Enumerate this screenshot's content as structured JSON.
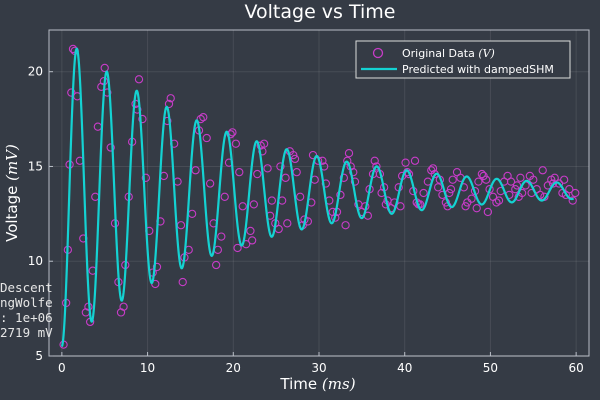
{
  "chart_data": {
    "type": "scatter",
    "title": "Voltage vs Time",
    "xlabel": "Time",
    "xlabel_unit": "(ms)",
    "ylabel": "Voltage",
    "ylabel_unit": "(mV)",
    "xlim": [
      -1.5,
      61.5
    ],
    "ylim": [
      5,
      22.2
    ],
    "xticks": [
      0,
      10,
      20,
      30,
      40,
      50,
      60
    ],
    "yticks": [
      5,
      10,
      15,
      20
    ],
    "grid": true,
    "legend_position": "top-right",
    "legend": [
      {
        "label": "Original Data",
        "unit": "(V)"
      },
      {
        "label": "Predicted with dampedSHM"
      }
    ],
    "annotation_lines": [
      "Descent",
      "ngWolfe",
      ": 1e+06",
      "2719 mV"
    ],
    "colors": {
      "background": "#353b45",
      "data_points": "#c83cc8",
      "model_line": "#14d2d2",
      "text": "#ffffff"
    },
    "model": {
      "name": "dampedSHM",
      "baseline_mV": 13.7,
      "amplitude_mV": -8.2,
      "decay_ms": 20,
      "period_ms": 3.5,
      "sample_step_ms": 0.35
    },
    "series": [
      {
        "name": "Original Data",
        "kind": "scatter",
        "points": [
          [
            0.2,
            5.6
          ],
          [
            0.5,
            7.8
          ],
          [
            0.7,
            10.6
          ],
          [
            0.9,
            15.1
          ],
          [
            1.1,
            18.9
          ],
          [
            1.5,
            21.1
          ],
          [
            1.8,
            18.7
          ],
          [
            2.1,
            15.3
          ],
          [
            2.5,
            11.2
          ],
          [
            2.8,
            7.3
          ],
          [
            3.3,
            6.8
          ],
          [
            3.6,
            9.5
          ],
          [
            3.9,
            13.4
          ],
          [
            4.2,
            17.1
          ],
          [
            4.6,
            19.2
          ],
          [
            5.0,
            20.2
          ],
          [
            5.3,
            18.9
          ],
          [
            5.7,
            16.0
          ],
          [
            6.2,
            12.0
          ],
          [
            6.6,
            8.9
          ],
          [
            6.9,
            7.3
          ],
          [
            7.4,
            9.8
          ],
          [
            7.8,
            13.4
          ],
          [
            8.2,
            16.3
          ],
          [
            8.6,
            18.3
          ],
          [
            9.0,
            19.6
          ],
          [
            9.4,
            17.5
          ],
          [
            9.8,
            14.4
          ],
          [
            10.2,
            11.6
          ],
          [
            10.6,
            9.4
          ],
          [
            11.1,
            9.7
          ],
          [
            11.5,
            12.1
          ],
          [
            11.9,
            14.5
          ],
          [
            12.3,
            17.4
          ],
          [
            12.7,
            18.6
          ],
          [
            13.1,
            16.2
          ],
          [
            13.5,
            14.2
          ],
          [
            13.9,
            11.9
          ],
          [
            14.3,
            10.2
          ],
          [
            14.8,
            10.6
          ],
          [
            15.2,
            12.5
          ],
          [
            15.6,
            14.8
          ],
          [
            16.0,
            16.9
          ],
          [
            16.5,
            17.6
          ],
          [
            16.9,
            16.5
          ],
          [
            17.3,
            14.1
          ],
          [
            17.7,
            12.0
          ],
          [
            18.2,
            10.6
          ],
          [
            18.6,
            11.3
          ],
          [
            19.0,
            13.4
          ],
          [
            19.5,
            15.2
          ],
          [
            19.9,
            16.8
          ],
          [
            20.3,
            16.2
          ],
          [
            20.7,
            14.7
          ],
          [
            21.1,
            12.9
          ],
          [
            21.5,
            10.9
          ],
          [
            22.0,
            11.6
          ],
          [
            22.4,
            13.0
          ],
          [
            22.8,
            14.6
          ],
          [
            23.2,
            16.1
          ],
          [
            23.6,
            16.2
          ],
          [
            24.0,
            14.9
          ],
          [
            24.5,
            13.2
          ],
          [
            24.9,
            12.0
          ],
          [
            25.3,
            11.7
          ],
          [
            25.7,
            13.2
          ],
          [
            26.1,
            14.4
          ],
          [
            26.6,
            15.8
          ],
          [
            27.0,
            15.6
          ],
          [
            27.4,
            14.7
          ],
          [
            27.8,
            13.4
          ],
          [
            28.3,
            12.2
          ],
          [
            28.7,
            12.1
          ],
          [
            29.1,
            13.1
          ],
          [
            29.5,
            14.3
          ],
          [
            29.9,
            15.3
          ],
          [
            30.4,
            15.3
          ],
          [
            30.8,
            14.1
          ],
          [
            31.2,
            13.2
          ],
          [
            31.6,
            12.6
          ],
          [
            32.1,
            12.6
          ],
          [
            32.5,
            13.5
          ],
          [
            32.9,
            14.4
          ],
          [
            33.3,
            15.3
          ],
          [
            33.7,
            15.0
          ],
          [
            34.2,
            14.2
          ],
          [
            34.6,
            13.0
          ],
          [
            35.0,
            12.6
          ],
          [
            35.4,
            12.9
          ],
          [
            35.9,
            13.8
          ],
          [
            36.3,
            14.6
          ],
          [
            36.7,
            15.0
          ],
          [
            37.1,
            14.6
          ],
          [
            37.6,
            13.9
          ],
          [
            38.0,
            13.2
          ],
          [
            38.4,
            12.8
          ],
          [
            38.8,
            13.1
          ],
          [
            39.3,
            13.9
          ],
          [
            39.7,
            14.5
          ],
          [
            40.1,
            15.2
          ],
          [
            40.5,
            14.6
          ],
          [
            41.0,
            13.7
          ],
          [
            41.4,
            13.1
          ],
          [
            41.8,
            13.0
          ],
          [
            42.2,
            13.6
          ],
          [
            42.7,
            14.2
          ],
          [
            43.1,
            14.8
          ],
          [
            43.5,
            14.6
          ],
          [
            43.9,
            13.9
          ],
          [
            44.4,
            13.5
          ],
          [
            44.8,
            13.1
          ],
          [
            45.2,
            13.6
          ],
          [
            45.6,
            14.3
          ],
          [
            46.1,
            14.7
          ],
          [
            46.5,
            14.4
          ],
          [
            46.9,
            13.9
          ],
          [
            47.3,
            13.1
          ],
          [
            47.8,
            13.3
          ],
          [
            48.2,
            13.7
          ],
          [
            48.6,
            14.2
          ],
          [
            49.0,
            14.6
          ],
          [
            49.5,
            14.3
          ],
          [
            49.9,
            13.8
          ],
          [
            50.3,
            13.4
          ],
          [
            50.7,
            13.1
          ],
          [
            51.2,
            13.7
          ],
          [
            51.6,
            14.2
          ],
          [
            52.0,
            14.5
          ],
          [
            52.4,
            14.2
          ],
          [
            52.9,
            13.8
          ],
          [
            53.3,
            13.4
          ],
          [
            53.7,
            13.6
          ],
          [
            54.1,
            14.0
          ],
          [
            54.6,
            14.5
          ],
          [
            55.0,
            14.3
          ],
          [
            55.4,
            13.8
          ],
          [
            55.8,
            13.5
          ],
          [
            56.3,
            13.4
          ],
          [
            56.7,
            14.0
          ],
          [
            57.1,
            14.3
          ],
          [
            57.5,
            14.4
          ],
          [
            58.0,
            14.1
          ],
          [
            58.4,
            13.6
          ],
          [
            58.8,
            13.5
          ],
          [
            59.2,
            13.8
          ],
          [
            59.6,
            13.2
          ],
          [
            1.3,
            21.2
          ],
          [
            3.1,
            7.6
          ],
          [
            4.9,
            19.5
          ],
          [
            8.8,
            18.0
          ],
          [
            12.5,
            18.3
          ],
          [
            16.2,
            17.5
          ],
          [
            19.7,
            16.7
          ],
          [
            23.4,
            15.8
          ],
          [
            27.2,
            15.4
          ],
          [
            30.6,
            15.0
          ],
          [
            34.0,
            14.7
          ],
          [
            37.8,
            13.0
          ],
          [
            41.6,
            13.0
          ],
          [
            45.4,
            13.8
          ],
          [
            49.2,
            14.5
          ],
          [
            53.1,
            14.0
          ],
          [
            57.3,
            14.1
          ],
          [
            20.5,
            10.7
          ],
          [
            24.3,
            12.4
          ],
          [
            28.1,
            11.9
          ],
          [
            31.9,
            12.3
          ],
          [
            35.7,
            12.4
          ],
          [
            39.5,
            12.9
          ],
          [
            43.3,
            14.9
          ],
          [
            47.1,
            12.9
          ],
          [
            51.0,
            13.2
          ],
          [
            54.8,
            13.6
          ],
          [
            58.6,
            14.3
          ],
          [
            14.1,
            8.9
          ],
          [
            10.9,
            8.8
          ],
          [
            7.2,
            7.6
          ],
          [
            18.0,
            9.8
          ],
          [
            22.2,
            11.1
          ],
          [
            26.3,
            12.0
          ],
          [
            33.5,
            15.7
          ],
          [
            36.5,
            15.3
          ],
          [
            40.3,
            14.7
          ],
          [
            44.1,
            14.3
          ],
          [
            48.4,
            12.8
          ],
          [
            52.2,
            13.5
          ],
          [
            56.1,
            14.8
          ],
          [
            59.9,
            13.6
          ],
          [
            25.5,
            15.0
          ],
          [
            29.3,
            15.6
          ],
          [
            33.1,
            11.9
          ],
          [
            37.3,
            13.6
          ],
          [
            41.2,
            15.3
          ],
          [
            45.0,
            12.9
          ],
          [
            49.7,
            12.6
          ],
          [
            53.5,
            14.4
          ]
        ]
      },
      {
        "name": "Predicted with dampedSHM",
        "kind": "line"
      }
    ]
  }
}
